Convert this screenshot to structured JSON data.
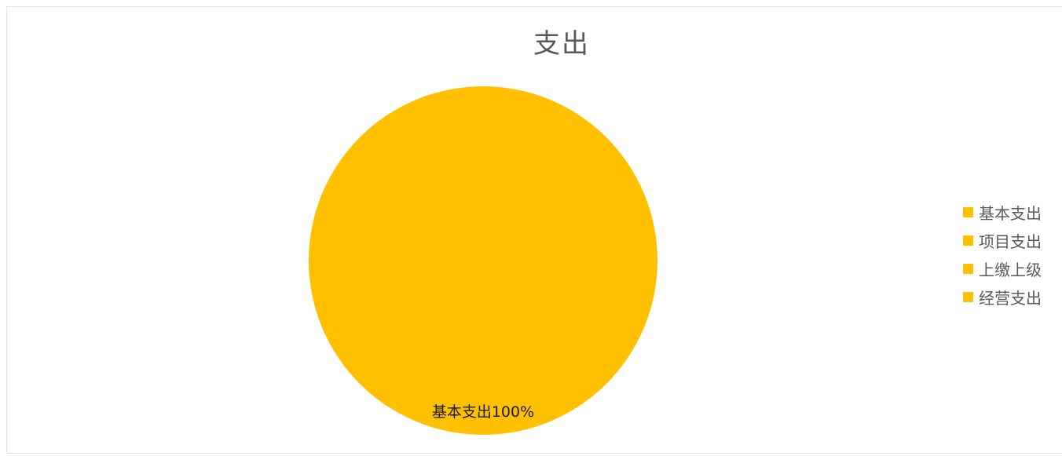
{
  "chart_data": {
    "type": "pie",
    "title": "支出",
    "series": [
      {
        "values": [
          100,
          0,
          0,
          0
        ]
      }
    ],
    "categories": [
      "基本支出",
      "项目支出",
      "上缴上级",
      "经营支出"
    ],
    "data_labels": [
      {
        "category": "基本支出",
        "value": "100%"
      }
    ],
    "legend": {
      "position": "right",
      "entries": [
        "基本支出",
        "项目支出",
        "上缴上级",
        "经营支出"
      ]
    },
    "colors": [
      "#FFC000",
      "#FFC000",
      "#FFC000",
      "#FFC000"
    ]
  }
}
